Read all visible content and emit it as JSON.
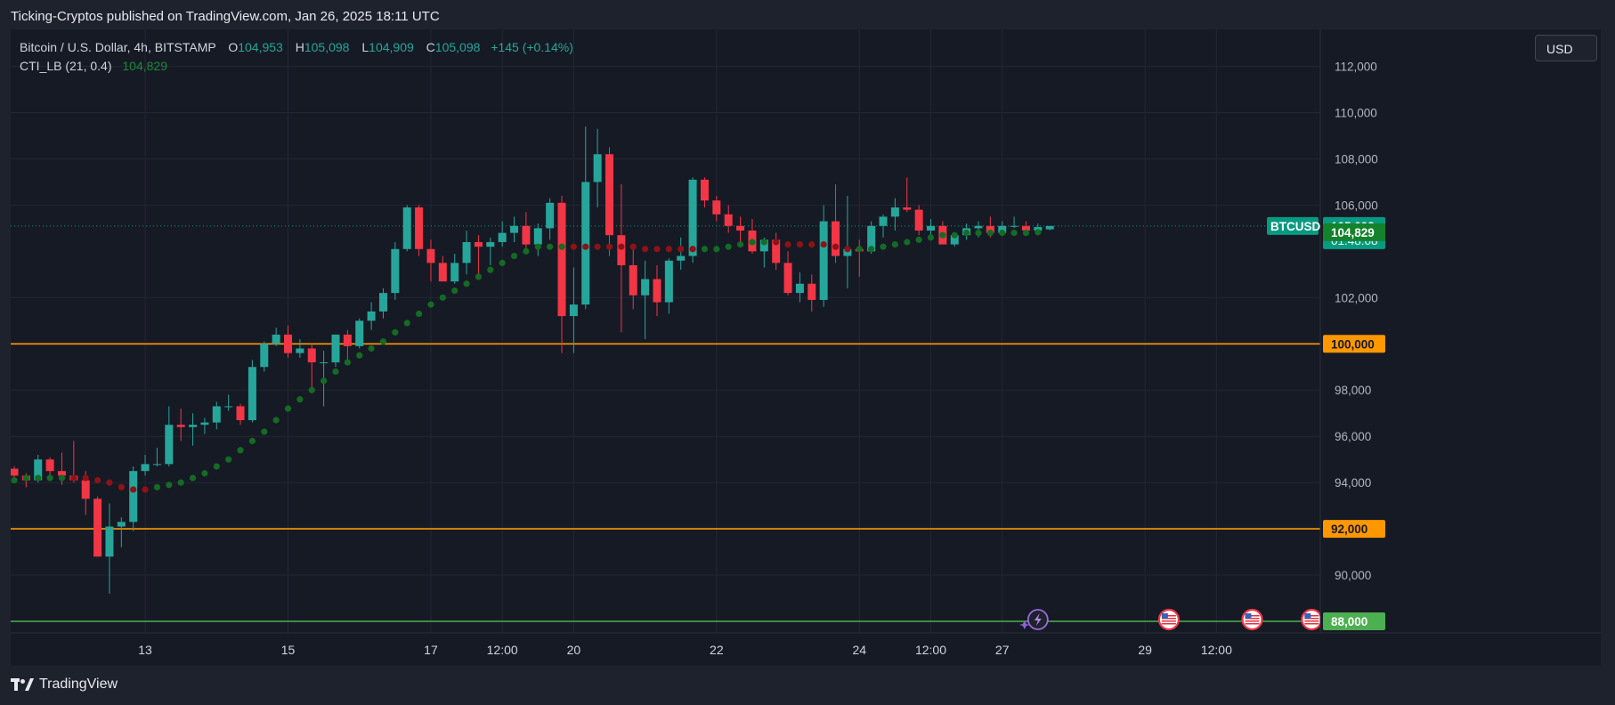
{
  "caption": "Ticking-Cryptos published on TradingView.com, Jan 26, 2025 18:11 UTC",
  "legend": {
    "symbol": "Bitcoin / U.S. Dollar, 4h, BITSTAMP",
    "o_key": "O",
    "o_val": "104,953",
    "h_key": "H",
    "h_val": "105,098",
    "l_key": "L",
    "l_val": "104,909",
    "c_key": "C",
    "c_val": "105,098",
    "change": "+145 (+0.14%)",
    "indicator_name": "CTI_LB (21, 0.4)",
    "indicator_value": "104,829"
  },
  "currency_button": "USD",
  "brand": "TradingView",
  "colors": {
    "up": "#26a69a",
    "down": "#f23645",
    "level": "#ff9800",
    "support": "#4caf50",
    "dot_green": "#146b24",
    "dot_red": "#8e1217",
    "background": "#161a25",
    "grid": "#232734"
  },
  "chart_data": {
    "type": "candlestick",
    "symbol": "BTCUSD",
    "interval": "4h",
    "x_labels": [
      {
        "i": 11,
        "label": "13"
      },
      {
        "i": 23,
        "label": "15"
      },
      {
        "i": 35,
        "label": "17"
      },
      {
        "i": 41,
        "label": "12:00"
      },
      {
        "i": 47,
        "label": "20"
      },
      {
        "i": 59,
        "label": "22"
      },
      {
        "i": 71,
        "label": "24"
      },
      {
        "i": 77,
        "label": "12:00"
      },
      {
        "i": 83,
        "label": "27"
      },
      {
        "i": 95,
        "label": "29"
      },
      {
        "i": 101,
        "label": "12:00"
      }
    ],
    "y_ticks": [
      112000,
      110000,
      108000,
      106000,
      102000,
      98000,
      96000,
      94000,
      90000
    ],
    "y_tick_labels": [
      "112,000",
      "110,000",
      "108,000",
      "106,000",
      "102,000",
      "98,000",
      "96,000",
      "94,000",
      "90,000"
    ],
    "ylim": [
      87500,
      113600
    ],
    "price_labels": [
      {
        "value": 105098,
        "text": "105,098",
        "sub": "01:48:08",
        "tag": "BTCUSD",
        "color": "#089981"
      },
      {
        "value": 104829,
        "text": "104,829",
        "color": "#13822c"
      },
      {
        "value": 100000,
        "text": "100,000",
        "color": "#ff9800"
      },
      {
        "value": 92000,
        "text": "92,000",
        "color": "#ff9800"
      },
      {
        "value": 88000,
        "text": "88,000",
        "color": "#4caf50"
      }
    ],
    "horizontal_levels": [
      {
        "value": 100000,
        "color": "#ff9800"
      },
      {
        "value": 92000,
        "color": "#ff9800"
      },
      {
        "value": 88000,
        "color": "#4caf50"
      }
    ],
    "last_price_line": 105098,
    "candles": [
      [
        94600,
        94700,
        94100,
        94300
      ],
      [
        94300,
        94400,
        93800,
        94100
      ],
      [
        94100,
        95200,
        94000,
        95000
      ],
      [
        95000,
        95100,
        94300,
        94500
      ],
      [
        94500,
        95300,
        93900,
        94300
      ],
      [
        94300,
        95800,
        94000,
        94100
      ],
      [
        94100,
        94500,
        92600,
        93300
      ],
      [
        93300,
        93400,
        90800,
        90800
      ],
      [
        90800,
        93100,
        89200,
        92100
      ],
      [
        92100,
        92500,
        91200,
        92300
      ],
      [
        92300,
        94700,
        91900,
        94500
      ],
      [
        94500,
        95200,
        94300,
        94800
      ],
      [
        94800,
        95500,
        94700,
        94800
      ],
      [
        94800,
        97300,
        94700,
        96500
      ],
      [
        96500,
        97200,
        95800,
        96400
      ],
      [
        96400,
        97000,
        95600,
        96500
      ],
      [
        96500,
        96800,
        96100,
        96600
      ],
      [
        96600,
        97500,
        96300,
        97300
      ],
      [
        97300,
        97800,
        97100,
        97300
      ],
      [
        97300,
        97400,
        96500,
        96700
      ],
      [
        96700,
        99300,
        96600,
        99000
      ],
      [
        99000,
        100100,
        98800,
        100000
      ],
      [
        100000,
        100700,
        99900,
        100400
      ],
      [
        100400,
        100800,
        99400,
        99600
      ],
      [
        99600,
        100200,
        99400,
        99800
      ],
      [
        99800,
        100000,
        98100,
        99200
      ],
      [
        99200,
        99700,
        97300,
        99200
      ],
      [
        99200,
        100400,
        99000,
        100400
      ],
      [
        100400,
        100600,
        99300,
        99900
      ],
      [
        99900,
        101100,
        99800,
        101000
      ],
      [
        101000,
        101800,
        100600,
        101400
      ],
      [
        101400,
        102400,
        101100,
        102200
      ],
      [
        102200,
        104400,
        101900,
        104100
      ],
      [
        104100,
        106000,
        104000,
        105900
      ],
      [
        105900,
        106000,
        103800,
        104100
      ],
      [
        104100,
        104500,
        102700,
        103500
      ],
      [
        103500,
        103800,
        102700,
        102700
      ],
      [
        102700,
        103900,
        102600,
        103500
      ],
      [
        103500,
        104900,
        103000,
        104400
      ],
      [
        104400,
        104700,
        102900,
        104200
      ],
      [
        104200,
        104600,
        103400,
        104400
      ],
      [
        104400,
        105300,
        104200,
        104800
      ],
      [
        104800,
        105500,
        104400,
        105100
      ],
      [
        105100,
        105700,
        104000,
        104300
      ],
      [
        104300,
        105200,
        103800,
        105000
      ],
      [
        105000,
        106300,
        104500,
        106100
      ],
      [
        106100,
        106400,
        99600,
        101200
      ],
      [
        101200,
        103300,
        99600,
        101700
      ],
      [
        101700,
        109400,
        101500,
        107000
      ],
      [
        107000,
        109300,
        105900,
        108200
      ],
      [
        108200,
        108500,
        103800,
        104700
      ],
      [
        104700,
        106900,
        100500,
        103400
      ],
      [
        103400,
        104200,
        101500,
        102100
      ],
      [
        102100,
        103600,
        100200,
        102800
      ],
      [
        102800,
        103400,
        101200,
        101800
      ],
      [
        101800,
        103700,
        101300,
        103600
      ],
      [
        103600,
        104600,
        103200,
        103800
      ],
      [
        103800,
        107200,
        103500,
        107100
      ],
      [
        107100,
        107200,
        105900,
        106200
      ],
      [
        106200,
        106400,
        105300,
        105600
      ],
      [
        105600,
        106000,
        104800,
        105100
      ],
      [
        105100,
        105500,
        104400,
        104900
      ],
      [
        104900,
        105400,
        103900,
        104000
      ],
      [
        104000,
        104600,
        103300,
        104500
      ],
      [
        104500,
        104800,
        103200,
        103500
      ],
      [
        103500,
        104000,
        102100,
        102200
      ],
      [
        102200,
        103100,
        101800,
        102600
      ],
      [
        102600,
        103000,
        101400,
        101900
      ],
      [
        101900,
        106000,
        101600,
        105300
      ],
      [
        105300,
        106900,
        103500,
        103800
      ],
      [
        103800,
        106400,
        102400,
        104100
      ],
      [
        104100,
        104500,
        102900,
        104000
      ],
      [
        104000,
        105300,
        103900,
        105100
      ],
      [
        105100,
        105600,
        104600,
        105500
      ],
      [
        105500,
        106300,
        104900,
        105900
      ],
      [
        105900,
        107200,
        105700,
        105800
      ],
      [
        105800,
        106000,
        104700,
        104900
      ],
      [
        104900,
        105400,
        104500,
        105100
      ],
      [
        105100,
        105300,
        104300,
        104300
      ],
      [
        104300,
        104800,
        104200,
        104700
      ],
      [
        104700,
        105200,
        104500,
        105000
      ],
      [
        105000,
        105300,
        104600,
        105100
      ],
      [
        105100,
        105500,
        104600,
        104800
      ],
      [
        104800,
        105300,
        104700,
        105100
      ],
      [
        105100,
        105500,
        105000,
        105100
      ],
      [
        105100,
        105300,
        104700,
        104900
      ],
      [
        104900,
        105200,
        104800,
        105050
      ],
      [
        104953,
        105098,
        104909,
        105098
      ]
    ],
    "cti_dots": [
      [
        94100,
        "g"
      ],
      [
        94200,
        "g"
      ],
      [
        94200,
        "g"
      ],
      [
        94200,
        "g"
      ],
      [
        94200,
        "g"
      ],
      [
        94200,
        "r"
      ],
      [
        94200,
        "r"
      ],
      [
        94100,
        "r"
      ],
      [
        94000,
        "r"
      ],
      [
        93800,
        "r"
      ],
      [
        93700,
        "r"
      ],
      [
        93700,
        "r"
      ],
      [
        93800,
        "g"
      ],
      [
        93900,
        "g"
      ],
      [
        94000,
        "g"
      ],
      [
        94200,
        "g"
      ],
      [
        94400,
        "g"
      ],
      [
        94700,
        "g"
      ],
      [
        95000,
        "g"
      ],
      [
        95400,
        "g"
      ],
      [
        95800,
        "g"
      ],
      [
        96200,
        "g"
      ],
      [
        96700,
        "g"
      ],
      [
        97200,
        "g"
      ],
      [
        97600,
        "g"
      ],
      [
        98000,
        "g"
      ],
      [
        98400,
        "g"
      ],
      [
        98800,
        "g"
      ],
      [
        99200,
        "g"
      ],
      [
        99500,
        "g"
      ],
      [
        99800,
        "g"
      ],
      [
        100100,
        "g"
      ],
      [
        100500,
        "g"
      ],
      [
        100900,
        "g"
      ],
      [
        101300,
        "g"
      ],
      [
        101700,
        "g"
      ],
      [
        102000,
        "g"
      ],
      [
        102300,
        "g"
      ],
      [
        102600,
        "g"
      ],
      [
        102900,
        "g"
      ],
      [
        103200,
        "g"
      ],
      [
        103500,
        "g"
      ],
      [
        103800,
        "g"
      ],
      [
        104000,
        "g"
      ],
      [
        104200,
        "g"
      ],
      [
        104200,
        "g"
      ],
      [
        104200,
        "g"
      ],
      [
        104200,
        "r"
      ],
      [
        104200,
        "r"
      ],
      [
        104200,
        "r"
      ],
      [
        104200,
        "r"
      ],
      [
        104200,
        "r"
      ],
      [
        104200,
        "r"
      ],
      [
        104100,
        "r"
      ],
      [
        104100,
        "r"
      ],
      [
        104100,
        "r"
      ],
      [
        104100,
        "r"
      ],
      [
        104100,
        "r"
      ],
      [
        104100,
        "g"
      ],
      [
        104100,
        "g"
      ],
      [
        104200,
        "g"
      ],
      [
        104300,
        "g"
      ],
      [
        104400,
        "g"
      ],
      [
        104400,
        "g"
      ],
      [
        104400,
        "r"
      ],
      [
        104300,
        "r"
      ],
      [
        104300,
        "r"
      ],
      [
        104300,
        "r"
      ],
      [
        104300,
        "r"
      ],
      [
        104200,
        "r"
      ],
      [
        104100,
        "r"
      ],
      [
        104100,
        "g"
      ],
      [
        104100,
        "g"
      ],
      [
        104200,
        "g"
      ],
      [
        104300,
        "g"
      ],
      [
        104400,
        "g"
      ],
      [
        104500,
        "g"
      ],
      [
        104600,
        "g"
      ],
      [
        104700,
        "g"
      ],
      [
        104700,
        "g"
      ],
      [
        104800,
        "g"
      ],
      [
        104800,
        "g"
      ],
      [
        104800,
        "g"
      ],
      [
        104800,
        "g"
      ],
      [
        104800,
        "g"
      ],
      [
        104800,
        "g"
      ],
      [
        104829,
        "g"
      ]
    ],
    "event_markers": [
      {
        "i": 86,
        "type": "lightning"
      },
      {
        "i": 97,
        "type": "us-flag"
      },
      {
        "i": 104,
        "type": "us-flag"
      },
      {
        "i": 109,
        "type": "us-flag"
      }
    ]
  }
}
